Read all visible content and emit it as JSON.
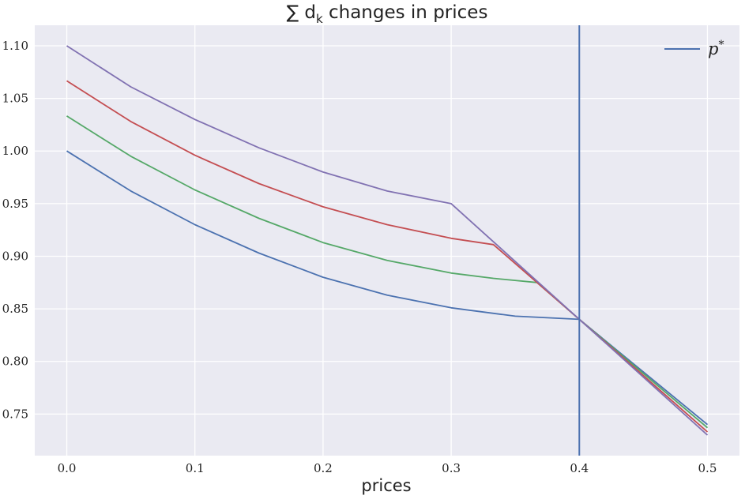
{
  "chart_data": {
    "type": "line",
    "title": "∑ d",
    "title_subscript": "k",
    "title_suffix": " changes in prices",
    "xlabel": "prices",
    "ylabel": "",
    "xlim": [
      -0.025,
      0.525
    ],
    "ylim": [
      0.7105,
      1.1195
    ],
    "xticks": [
      0.0,
      0.1,
      0.2,
      0.3,
      0.4,
      0.5
    ],
    "xtick_labels": [
      "0.0",
      "0.1",
      "0.2",
      "0.3",
      "0.4",
      "0.5"
    ],
    "yticks": [
      0.75,
      0.8,
      0.85,
      0.9,
      0.95,
      1.0,
      1.05,
      1.1
    ],
    "ytick_labels": [
      "0.75",
      "0.80",
      "0.85",
      "0.90",
      "0.95",
      "1.00",
      "1.05",
      "1.10"
    ],
    "grid": true,
    "background": "#eaeaf2",
    "legend_position": "upper right",
    "vertical_line": {
      "x": 0.4,
      "name": "p",
      "name_superscript": "*",
      "color": "#4c72b0"
    },
    "series": [
      {
        "color": "#4c72b0",
        "points": [
          [
            0.0,
            1.0
          ],
          [
            0.05,
            0.962
          ],
          [
            0.1,
            0.93
          ],
          [
            0.15,
            0.903
          ],
          [
            0.2,
            0.88
          ],
          [
            0.25,
            0.863
          ],
          [
            0.3,
            0.851
          ],
          [
            0.35,
            0.843
          ],
          [
            0.4,
            0.84
          ],
          [
            0.5,
            0.74
          ]
        ]
      },
      {
        "color": "#55a868",
        "points": [
          [
            0.0,
            1.0333
          ],
          [
            0.05,
            0.995
          ],
          [
            0.1,
            0.963
          ],
          [
            0.15,
            0.936
          ],
          [
            0.2,
            0.913
          ],
          [
            0.25,
            0.896
          ],
          [
            0.3,
            0.884
          ],
          [
            0.333,
            0.879
          ],
          [
            0.367,
            0.875
          ],
          [
            0.4,
            0.84
          ],
          [
            0.5,
            0.737
          ]
        ]
      },
      {
        "color": "#c44e52",
        "points": [
          [
            0.0,
            1.0667
          ],
          [
            0.05,
            1.028
          ],
          [
            0.1,
            0.996
          ],
          [
            0.15,
            0.969
          ],
          [
            0.2,
            0.947
          ],
          [
            0.25,
            0.93
          ],
          [
            0.3,
            0.917
          ],
          [
            0.333,
            0.911
          ],
          [
            0.4,
            0.84
          ],
          [
            0.5,
            0.733
          ]
        ]
      },
      {
        "color": "#8172b2",
        "points": [
          [
            0.0,
            1.1
          ],
          [
            0.05,
            1.061
          ],
          [
            0.1,
            1.03
          ],
          [
            0.15,
            1.003
          ],
          [
            0.2,
            0.98
          ],
          [
            0.25,
            0.962
          ],
          [
            0.3,
            0.95
          ],
          [
            0.4,
            0.84
          ],
          [
            0.5,
            0.73
          ]
        ]
      }
    ]
  }
}
